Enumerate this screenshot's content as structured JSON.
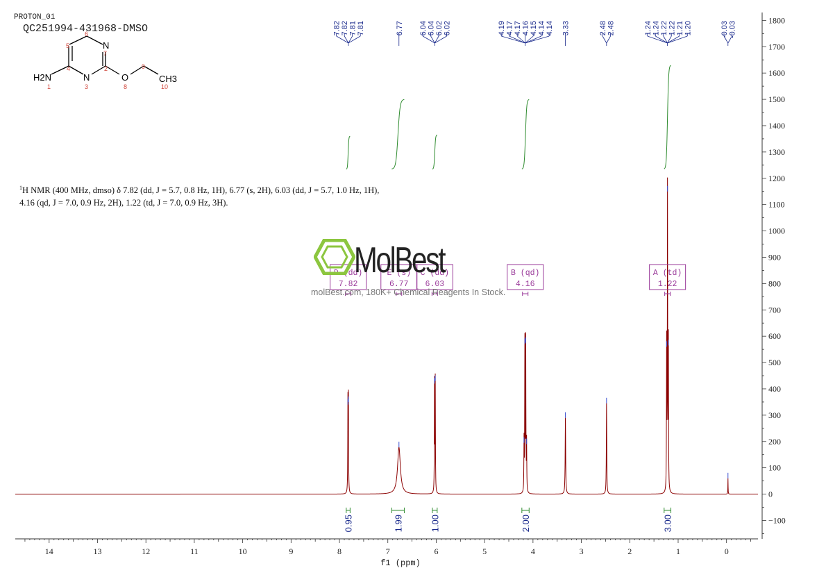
{
  "header": {
    "experiment": "PROTON_01",
    "sample": "QC251994-431968-DMSO"
  },
  "molecule": {
    "atoms": {
      "h2n": "H2N",
      "n1": "1",
      "c4": "4",
      "c5": "5",
      "c6": "6",
      "n7": "N",
      "n7_num": "7",
      "c2": "2",
      "n3": "N",
      "n3_num": "3",
      "o8": "O",
      "o8_num": "8",
      "c9": "9",
      "ch3": "CH3",
      "c10": "10"
    },
    "colors": {
      "bond": "#000000",
      "label_num": "#d0453a"
    }
  },
  "description": {
    "prefix_sup": "1",
    "line1": "H NMR (400 MHz, dmso) δ 7.82 (dd, J = 5.7, 0.8 Hz, 1H), 6.77 (s, 2H), 6.03 (dd, J = 5.7, 1.0 Hz, 1H),",
    "line2": "4.16 (qd, J = 7.0, 0.9 Hz, 2H), 1.22 (td, J = 7.0, 0.9 Hz, 3H)."
  },
  "watermark": {
    "brand": "MolBest",
    "tagline": "molBest.com, 180K+ Chemical Reagents In Stock."
  },
  "chart_data": {
    "type": "line",
    "xlabel": "f1 (ppm)",
    "xlim": [
      14.7,
      -0.65
    ],
    "ylim": [
      -170,
      1830
    ],
    "x_ticks": [
      14,
      13,
      12,
      11,
      10,
      9,
      8,
      7,
      6,
      5,
      4,
      3,
      2,
      1,
      0
    ],
    "y_ticks": [
      -100,
      0,
      100,
      200,
      300,
      400,
      500,
      600,
      700,
      800,
      900,
      1000,
      1100,
      1200,
      1300,
      1400,
      1500,
      1600,
      1700,
      1800
    ],
    "spectrum_color": "#8b0000",
    "integral_color": "#2e8b2e",
    "peak_label_color": "#1a2a8c",
    "multiplet_color": "#9a3a9a",
    "peaks": [
      {
        "ppm": 7.825,
        "height": 340,
        "width": 0.004
      },
      {
        "ppm": 7.815,
        "height": 350,
        "width": 0.004
      },
      {
        "ppm": 6.77,
        "height": 178,
        "width": 0.035
      },
      {
        "ppm": 6.035,
        "height": 420,
        "width": 0.004
      },
      {
        "ppm": 6.02,
        "height": 430,
        "width": 0.004
      },
      {
        "ppm": 4.185,
        "height": 195,
        "width": 0.004
      },
      {
        "ppm": 4.168,
        "height": 570,
        "width": 0.004
      },
      {
        "ppm": 4.15,
        "height": 575,
        "width": 0.004
      },
      {
        "ppm": 4.132,
        "height": 190,
        "width": 0.004
      },
      {
        "ppm": 3.33,
        "height": 290,
        "width": 0.006
      },
      {
        "ppm": 2.48,
        "height": 345,
        "width": 0.005
      },
      {
        "ppm": 1.238,
        "height": 560,
        "width": 0.004
      },
      {
        "ppm": 1.22,
        "height": 1150,
        "width": 0.004
      },
      {
        "ppm": 1.202,
        "height": 565,
        "width": 0.004
      },
      {
        "ppm": -0.03,
        "height": 60,
        "width": 0.003
      }
    ],
    "peak_labels": [
      {
        "group": [
          7.82,
          7.82,
          7.81,
          7.81
        ],
        "labels": [
          "7.82",
          "7.82",
          "7.81",
          "7.81"
        ]
      },
      {
        "group": [
          6.77
        ],
        "labels": [
          "6.77"
        ]
      },
      {
        "group": [
          6.04,
          6.04,
          6.02,
          6.02
        ],
        "labels": [
          "6.04",
          "6.04",
          "6.02",
          "6.02"
        ]
      },
      {
        "group": [
          4.19,
          4.17,
          4.17,
          4.16,
          4.15,
          4.14,
          4.14
        ],
        "labels": [
          "4.19",
          "4.17",
          "4.17",
          "4.16",
          "4.15",
          "4.14",
          "4.14"
        ]
      },
      {
        "group": [
          3.33
        ],
        "labels": [
          "3.33"
        ]
      },
      {
        "group": [
          2.48,
          2.48
        ],
        "labels": [
          "2.48",
          "2.48"
        ]
      },
      {
        "group": [
          1.24,
          1.24,
          1.22,
          1.22,
          1.21,
          1.2
        ],
        "labels": [
          "1.24",
          "1.24",
          "1.22",
          "1.22",
          "1.21",
          "1.20"
        ]
      },
      {
        "group": [
          -0.03,
          -0.03
        ],
        "labels": [
          "-0.03",
          "-0.03"
        ]
      }
    ],
    "multiplets": [
      {
        "letter": "D",
        "kind": "dd",
        "shift": "7.82",
        "ppm": 7.82
      },
      {
        "letter": "E",
        "kind": "s",
        "shift": "6.77",
        "ppm": 6.77
      },
      {
        "letter": "C",
        "kind": "dd",
        "shift": "6.03",
        "ppm": 6.03
      },
      {
        "letter": "B",
        "kind": "qd",
        "shift": "4.16",
        "ppm": 4.16
      },
      {
        "letter": "A",
        "kind": "td",
        "shift": "1.22",
        "ppm": 1.22
      }
    ],
    "integrals": [
      {
        "from": 7.86,
        "to": 7.78,
        "value": "0.95",
        "curve_bottom": 1235,
        "curve_top": 1360
      },
      {
        "from": 6.92,
        "to": 6.66,
        "value": "1.99",
        "curve_bottom": 1235,
        "curve_top": 1500
      },
      {
        "from": 6.08,
        "to": 5.98,
        "value": "1.00",
        "curve_bottom": 1235,
        "curve_top": 1365
      },
      {
        "from": 4.23,
        "to": 4.08,
        "value": "2.00",
        "curve_bottom": 1235,
        "curve_top": 1500
      },
      {
        "from": 1.29,
        "to": 1.15,
        "value": "3.00",
        "curve_bottom": 1235,
        "curve_top": 1630
      }
    ]
  }
}
